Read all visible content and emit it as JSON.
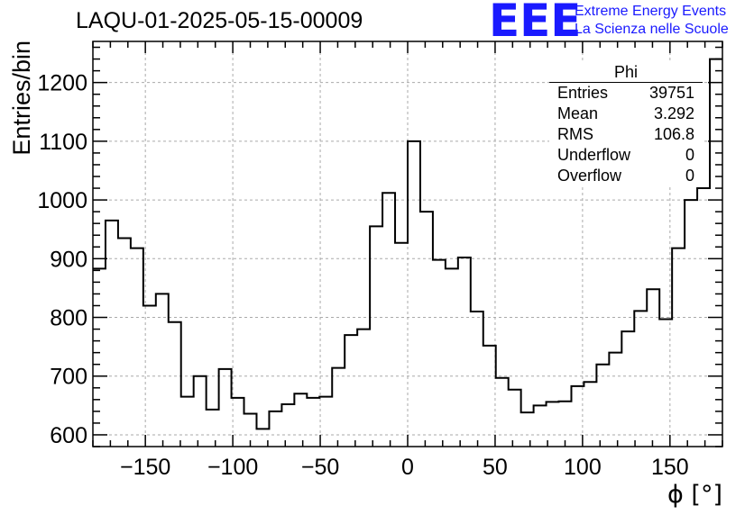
{
  "title": "LAQU-01-2025-05-15-00009",
  "logo": {
    "mark": "EEE",
    "line1": "Extreme Energy Events",
    "line2": "La Scienza nelle Scuole",
    "color": "#1a1aff"
  },
  "stats": {
    "name": "Phi",
    "rows": [
      {
        "label": "Entries",
        "value": "39751"
      },
      {
        "label": "Mean",
        "value": "3.292"
      },
      {
        "label": "RMS",
        "value": "106.8"
      },
      {
        "label": "Underflow",
        "value": "0"
      },
      {
        "label": "Overflow",
        "value": "0"
      }
    ]
  },
  "chart_data": {
    "type": "bar",
    "title": "LAQU-01-2025-05-15-00009",
    "xlabel": "ϕ [°]",
    "ylabel": "Entries/bin",
    "xlim": [
      -180,
      180
    ],
    "ylim": [
      580,
      1270
    ],
    "grid": true,
    "bin_width": 7.2,
    "x_ticks": [
      -150,
      -100,
      -50,
      0,
      50,
      100,
      150
    ],
    "x_tick_labels": [
      "−150",
      "−100",
      "−50",
      "0",
      "50",
      "100",
      "150"
    ],
    "y_ticks": [
      600,
      700,
      800,
      900,
      1000,
      1100,
      1200
    ],
    "y_tick_labels": [
      "600",
      "700",
      "800",
      "900",
      "1000",
      "1100",
      "1200"
    ],
    "values": [
      883,
      965,
      935,
      918,
      820,
      840,
      792,
      665,
      700,
      643,
      712,
      663,
      636,
      610,
      640,
      652,
      670,
      663,
      665,
      714,
      770,
      780,
      955,
      1012,
      927,
      1100,
      980,
      898,
      883,
      902,
      810,
      752,
      697,
      677,
      638,
      650,
      656,
      657,
      683,
      690,
      720,
      740,
      776,
      811,
      848,
      797,
      918,
      1000,
      1020,
      1240
    ]
  }
}
